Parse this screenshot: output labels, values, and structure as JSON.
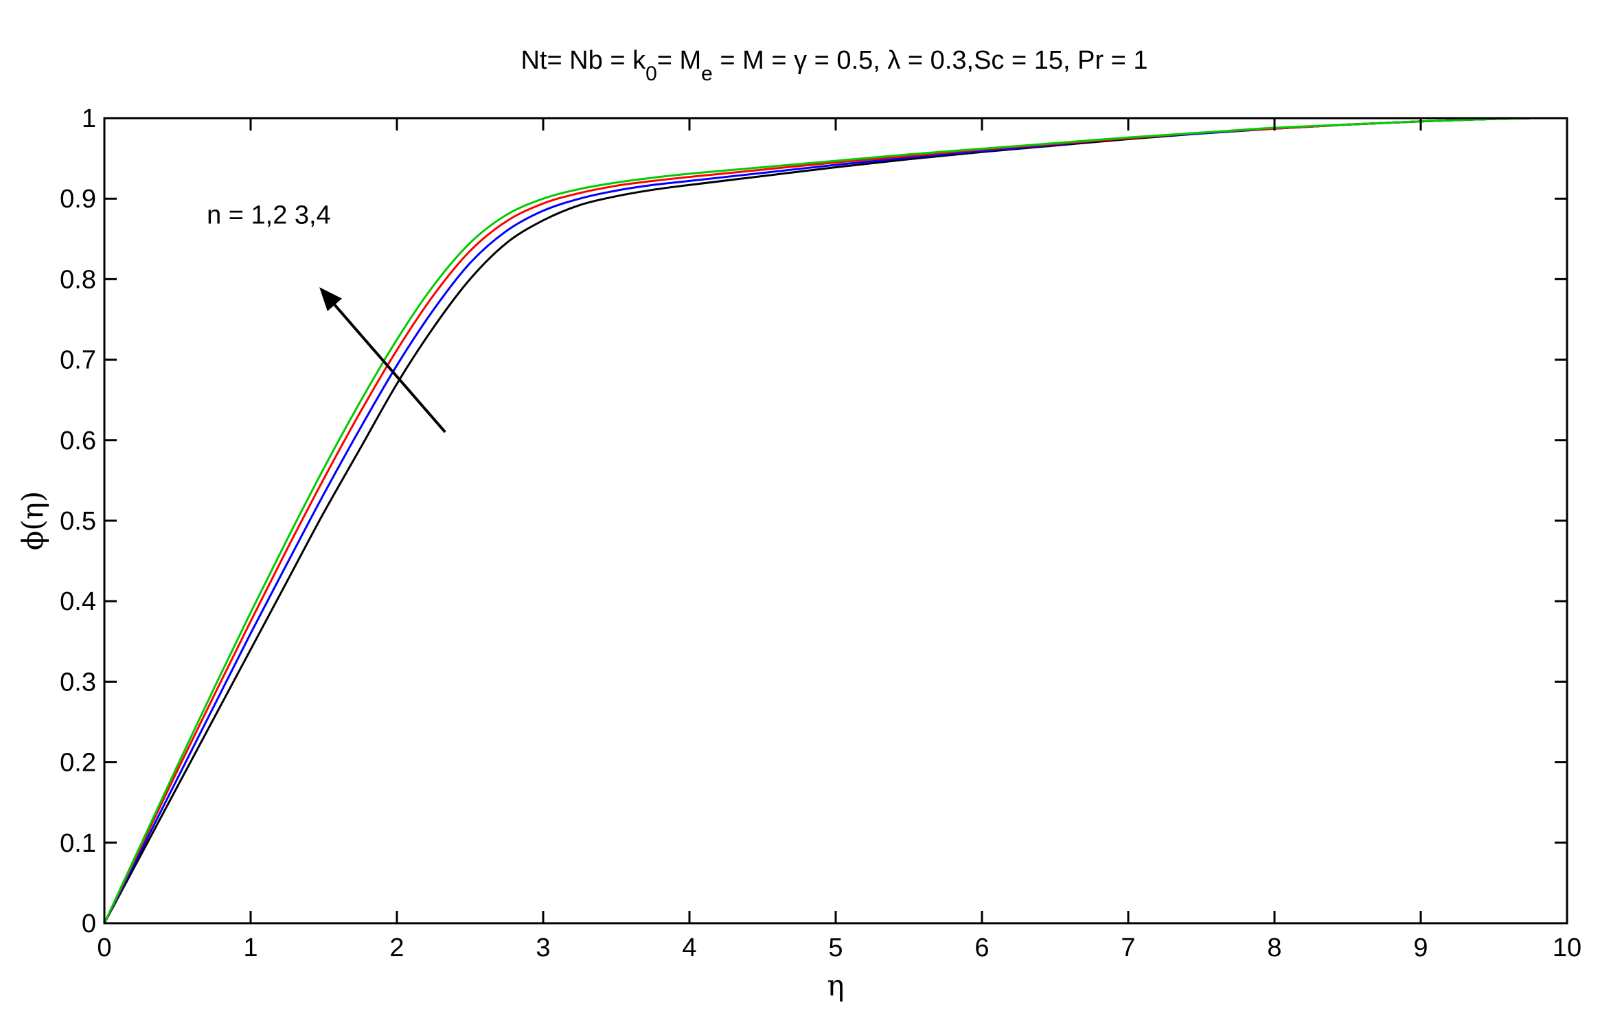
{
  "chart_data": {
    "type": "line",
    "title": {
      "parts": [
        {
          "text": "Nt= Nb = k"
        },
        {
          "text": "0",
          "sub": true
        },
        {
          "text": "= M"
        },
        {
          "text": "e",
          "sub": true
        },
        {
          "text": " = M = γ = 0.5, λ = 0.3,Sc = 15, Pr = 1"
        }
      ]
    },
    "xlabel": "η",
    "ylabel": "ϕ(η)",
    "xlim": [
      0,
      10
    ],
    "ylim": [
      0,
      1
    ],
    "xticks": [
      0,
      1,
      2,
      3,
      4,
      5,
      6,
      7,
      8,
      9,
      10
    ],
    "yticks": [
      0,
      0.1,
      0.2,
      0.3,
      0.4,
      0.5,
      0.6,
      0.7,
      0.8,
      0.9,
      1
    ],
    "grid": false,
    "annotation": {
      "text": "n = 1,2 3,4",
      "arrow_from": [
        2.33,
        0.61
      ],
      "arrow_to": [
        1.47,
        0.79
      ],
      "text_pos": [
        0.7,
        0.88
      ]
    },
    "x": [
      0,
      0.25,
      0.5,
      0.75,
      1,
      1.25,
      1.5,
      1.75,
      2,
      2.25,
      2.5,
      2.75,
      3,
      3.25,
      3.5,
      3.75,
      4,
      4.5,
      5,
      5.5,
      6,
      6.5,
      7,
      7.5,
      8,
      8.5,
      9,
      9.5,
      9.75
    ],
    "series": [
      {
        "color": "#000000",
        "values": [
          0,
          0.085,
          0.17,
          0.255,
          0.34,
          0.425,
          0.51,
          0.59,
          0.67,
          0.74,
          0.8,
          0.845,
          0.873,
          0.892,
          0.903,
          0.911,
          0.917,
          0.928,
          0.939,
          0.949,
          0.958,
          0.966,
          0.974,
          0.981,
          0.987,
          0.992,
          0.996,
          0.999,
          1.0
        ]
      },
      {
        "color": "#0000ff",
        "values": [
          0,
          0.09,
          0.18,
          0.27,
          0.36,
          0.447,
          0.533,
          0.615,
          0.693,
          0.762,
          0.82,
          0.86,
          0.885,
          0.9,
          0.91,
          0.917,
          0.922,
          0.932,
          0.942,
          0.951,
          0.959,
          0.967,
          0.975,
          0.981,
          0.987,
          0.992,
          0.996,
          0.999,
          1.0
        ]
      },
      {
        "color": "#ff0000",
        "values": [
          0,
          0.095,
          0.19,
          0.283,
          0.375,
          0.465,
          0.552,
          0.635,
          0.712,
          0.78,
          0.835,
          0.872,
          0.894,
          0.907,
          0.916,
          0.922,
          0.927,
          0.936,
          0.945,
          0.953,
          0.961,
          0.968,
          0.975,
          0.982,
          0.987,
          0.992,
          0.996,
          0.999,
          1.0
        ]
      },
      {
        "color": "#00cc00",
        "values": [
          0,
          0.098,
          0.196,
          0.292,
          0.386,
          0.477,
          0.565,
          0.648,
          0.725,
          0.792,
          0.845,
          0.88,
          0.9,
          0.912,
          0.92,
          0.926,
          0.931,
          0.939,
          0.947,
          0.955,
          0.962,
          0.969,
          0.976,
          0.982,
          0.988,
          0.992,
          0.996,
          0.999,
          1.0
        ]
      }
    ]
  }
}
